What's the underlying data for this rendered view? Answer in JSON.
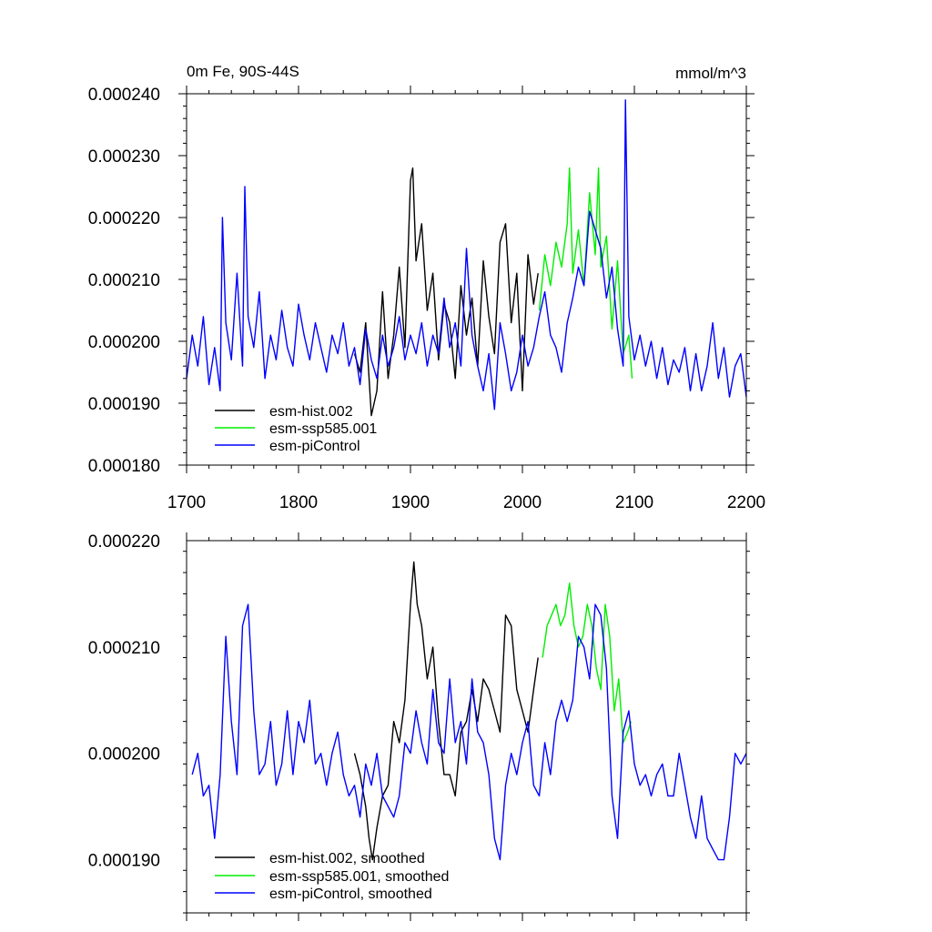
{
  "chart_data": [
    {
      "type": "line",
      "title": "0m Fe, 90S-44S",
      "units": "mmol/m^3",
      "xlim": [
        1700,
        2200
      ],
      "ylim": [
        0.00018,
        0.00024
      ],
      "xticks": [
        1700,
        1800,
        1900,
        2000,
        2100,
        2200
      ],
      "xtick_labels": [
        "1700",
        "1800",
        "1900",
        "2000",
        "2100",
        "2200"
      ],
      "yticks": [
        0.00018,
        0.00019,
        0.0002,
        0.00021,
        0.00022,
        0.00023,
        0.00024
      ],
      "ytick_labels": [
        "0.000180",
        "0.000190",
        "0.000200",
        "0.000210",
        "0.000220",
        "0.000230",
        "0.000240"
      ],
      "legend": [
        "esm-hist.002",
        "esm-ssp585.001",
        "esm-piControl"
      ],
      "legend_position": "bottom-left",
      "series": [
        {
          "name": "esm-hist.002",
          "color": "#000000",
          "x": [
            1850,
            1855,
            1860,
            1865,
            1870,
            1875,
            1880,
            1885,
            1890,
            1895,
            1900,
            1902,
            1905,
            1910,
            1915,
            1920,
            1925,
            1930,
            1935,
            1940,
            1945,
            1950,
            1955,
            1960,
            1965,
            1970,
            1975,
            1980,
            1985,
            1990,
            1995,
            2000,
            2005,
            2010,
            2014
          ],
          "y": [
            0.000198,
            0.000195,
            0.000203,
            0.000188,
            0.000192,
            0.000208,
            0.000194,
            0.000201,
            0.000212,
            0.000199,
            0.000226,
            0.000228,
            0.000213,
            0.000219,
            0.000205,
            0.000211,
            0.000197,
            0.000206,
            0.000203,
            0.000194,
            0.000209,
            0.000201,
            0.000207,
            0.000196,
            0.000213,
            0.000204,
            0.000198,
            0.000216,
            0.000219,
            0.000203,
            0.000211,
            0.000192,
            0.000214,
            0.000206,
            0.000211
          ]
        },
        {
          "name": "esm-ssp585.001",
          "color": "#00ee00",
          "x": [
            2015,
            2020,
            2025,
            2030,
            2035,
            2040,
            2042,
            2045,
            2050,
            2055,
            2060,
            2065,
            2068,
            2070,
            2075,
            2080,
            2085,
            2090,
            2095,
            2098
          ],
          "y": [
            0.000205,
            0.000214,
            0.000209,
            0.000216,
            0.000212,
            0.000219,
            0.000228,
            0.000211,
            0.000218,
            0.000209,
            0.000224,
            0.000214,
            0.000228,
            0.000212,
            0.000217,
            0.000202,
            0.000213,
            0.000198,
            0.000201,
            0.000194
          ]
        },
        {
          "name": "esm-piControl",
          "color": "#0000ff",
          "x": [
            1700,
            1705,
            1710,
            1715,
            1720,
            1725,
            1730,
            1732,
            1735,
            1740,
            1745,
            1750,
            1752,
            1755,
            1760,
            1765,
            1770,
            1775,
            1780,
            1785,
            1790,
            1795,
            1800,
            1805,
            1810,
            1815,
            1820,
            1825,
            1830,
            1835,
            1840,
            1845,
            1850,
            1855,
            1860,
            1865,
            1870,
            1875,
            1880,
            1885,
            1890,
            1895,
            1900,
            1905,
            1910,
            1915,
            1920,
            1925,
            1930,
            1935,
            1940,
            1945,
            1950,
            1955,
            1960,
            1965,
            1970,
            1975,
            1980,
            1985,
            1990,
            1995,
            2000,
            2005,
            2010,
            2015,
            2020,
            2025,
            2030,
            2035,
            2040,
            2045,
            2050,
            2055,
            2060,
            2065,
            2070,
            2075,
            2080,
            2085,
            2090,
            2092,
            2095,
            2100,
            2105,
            2110,
            2115,
            2120,
            2125,
            2130,
            2135,
            2140,
            2145,
            2150,
            2155,
            2160,
            2165,
            2170,
            2175,
            2180,
            2185,
            2190,
            2195,
            2200
          ],
          "y": [
            0.000194,
            0.000201,
            0.000196,
            0.000204,
            0.000193,
            0.000199,
            0.000192,
            0.00022,
            0.000203,
            0.000197,
            0.000211,
            0.000196,
            0.000225,
            0.000204,
            0.000199,
            0.000208,
            0.000194,
            0.000201,
            0.000197,
            0.000205,
            0.000199,
            0.000196,
            0.000206,
            0.000201,
            0.000197,
            0.000203,
            0.000199,
            0.000195,
            0.000201,
            0.000198,
            0.000203,
            0.000196,
            0.000199,
            0.000193,
            0.000202,
            0.000197,
            0.000194,
            0.000201,
            0.000196,
            0.000199,
            0.000204,
            0.000197,
            0.000201,
            0.000198,
            0.000203,
            0.000196,
            0.000201,
            0.000198,
            0.000207,
            0.000199,
            0.000203,
            0.000196,
            0.000215,
            0.000201,
            0.000196,
            0.000192,
            0.000198,
            0.000189,
            0.000203,
            0.000198,
            0.000192,
            0.000195,
            0.000201,
            0.000196,
            0.000199,
            0.000204,
            0.000208,
            0.000201,
            0.000199,
            0.000195,
            0.000203,
            0.000207,
            0.000212,
            0.000209,
            0.000221,
            0.000218,
            0.000215,
            0.000207,
            0.000212,
            0.000202,
            0.000196,
            0.000239,
            0.000204,
            0.000197,
            0.000201,
            0.000196,
            0.0002,
            0.000194,
            0.000199,
            0.000193,
            0.000197,
            0.000195,
            0.000199,
            0.000192,
            0.000198,
            0.000192,
            0.000196,
            0.000203,
            0.000194,
            0.000199,
            0.000191,
            0.000196,
            0.000198,
            0.000191
          ]
        }
      ]
    },
    {
      "type": "line",
      "title": "",
      "xlim": [
        1700,
        2200
      ],
      "ylim": [
        0.000185,
        0.00022
      ],
      "yticks": [
        0.00019,
        0.0002,
        0.00021,
        0.00022
      ],
      "ytick_labels": [
        "0.000190",
        "0.000200",
        "0.000210",
        "0.000220"
      ],
      "legend": [
        "esm-hist.002, smoothed",
        "esm-ssp585.001, smoothed",
        "esm-piControl, smoothed"
      ],
      "legend_position": "bottom-left",
      "series": [
        {
          "name": "esm-hist.002, smoothed",
          "color": "#000000",
          "x": [
            1850,
            1855,
            1860,
            1863,
            1866,
            1870,
            1875,
            1880,
            1885,
            1890,
            1895,
            1900,
            1903,
            1906,
            1910,
            1915,
            1920,
            1925,
            1930,
            1935,
            1940,
            1945,
            1950,
            1955,
            1960,
            1965,
            1970,
            1975,
            1980,
            1985,
            1990,
            1995,
            2000,
            2005,
            2010,
            2014
          ],
          "y": [
            0.0002,
            0.000198,
            0.000195,
            0.000192,
            0.00019,
            0.000193,
            0.000196,
            0.000197,
            0.000203,
            0.000201,
            0.000205,
            0.000214,
            0.000218,
            0.000214,
            0.000212,
            0.000207,
            0.00021,
            0.000203,
            0.000198,
            0.000198,
            0.000196,
            0.000202,
            0.000203,
            0.000206,
            0.000203,
            0.000207,
            0.000206,
            0.000204,
            0.000202,
            0.000213,
            0.000212,
            0.000206,
            0.000204,
            0.000202,
            0.000206,
            0.000209
          ]
        },
        {
          "name": "esm-ssp585.001, smoothed",
          "color": "#00ee00",
          "x": [
            2018,
            2022,
            2026,
            2030,
            2034,
            2038,
            2042,
            2046,
            2050,
            2054,
            2058,
            2062,
            2066,
            2070,
            2074,
            2078,
            2082,
            2086,
            2090,
            2094,
            2097
          ],
          "y": [
            0.000209,
            0.000212,
            0.000213,
            0.000214,
            0.000212,
            0.000213,
            0.000216,
            0.000212,
            0.00021,
            0.000211,
            0.000214,
            0.000212,
            0.000208,
            0.000206,
            0.000214,
            0.000211,
            0.000204,
            0.000207,
            0.000201,
            0.000202,
            0.000203
          ]
        },
        {
          "name": "esm-piControl, smoothed",
          "color": "#0000ff",
          "x": [
            1705,
            1710,
            1715,
            1720,
            1725,
            1730,
            1735,
            1740,
            1745,
            1750,
            1755,
            1760,
            1765,
            1770,
            1775,
            1780,
            1785,
            1790,
            1795,
            1800,
            1805,
            1810,
            1815,
            1820,
            1825,
            1830,
            1835,
            1840,
            1845,
            1850,
            1855,
            1860,
            1865,
            1870,
            1875,
            1880,
            1885,
            1890,
            1895,
            1900,
            1905,
            1910,
            1915,
            1920,
            1925,
            1930,
            1935,
            1940,
            1945,
            1950,
            1955,
            1960,
            1965,
            1970,
            1975,
            1980,
            1985,
            1990,
            1995,
            2000,
            2005,
            2010,
            2015,
            2020,
            2025,
            2030,
            2035,
            2040,
            2045,
            2050,
            2055,
            2060,
            2065,
            2070,
            2075,
            2080,
            2085,
            2090,
            2095,
            2100,
            2105,
            2110,
            2115,
            2120,
            2125,
            2130,
            2135,
            2140,
            2145,
            2150,
            2155,
            2160,
            2165,
            2170,
            2175,
            2180,
            2185,
            2190,
            2195,
            2200
          ],
          "y": [
            0.000198,
            0.0002,
            0.000196,
            0.000197,
            0.000192,
            0.000198,
            0.000211,
            0.000203,
            0.000198,
            0.000212,
            0.000214,
            0.000204,
            0.000198,
            0.000199,
            0.000203,
            0.000197,
            0.000199,
            0.000204,
            0.000198,
            0.000203,
            0.000201,
            0.000205,
            0.000199,
            0.0002,
            0.000197,
            0.0002,
            0.000202,
            0.000198,
            0.000196,
            0.000197,
            0.000194,
            0.000199,
            0.000197,
            0.0002,
            0.000196,
            0.000195,
            0.000194,
            0.000196,
            0.000201,
            0.0002,
            0.000204,
            0.000201,
            0.000199,
            0.000206,
            0.000201,
            0.0002,
            0.000207,
            0.000201,
            0.000203,
            0.000199,
            0.000207,
            0.000202,
            0.000201,
            0.000198,
            0.000192,
            0.00019,
            0.000197,
            0.0002,
            0.000198,
            0.000201,
            0.000203,
            0.000197,
            0.000196,
            0.000201,
            0.000198,
            0.000203,
            0.000205,
            0.000203,
            0.000205,
            0.000211,
            0.00021,
            0.000207,
            0.000214,
            0.000213,
            0.000208,
            0.000196,
            0.000192,
            0.000202,
            0.000204,
            0.000199,
            0.000197,
            0.000198,
            0.000196,
            0.000198,
            0.000199,
            0.000196,
            0.000196,
            0.0002,
            0.000197,
            0.000194,
            0.000192,
            0.000196,
            0.000192,
            0.000191,
            0.00019,
            0.00019,
            0.000194,
            0.0002,
            0.000199,
            0.0002
          ]
        }
      ]
    }
  ]
}
